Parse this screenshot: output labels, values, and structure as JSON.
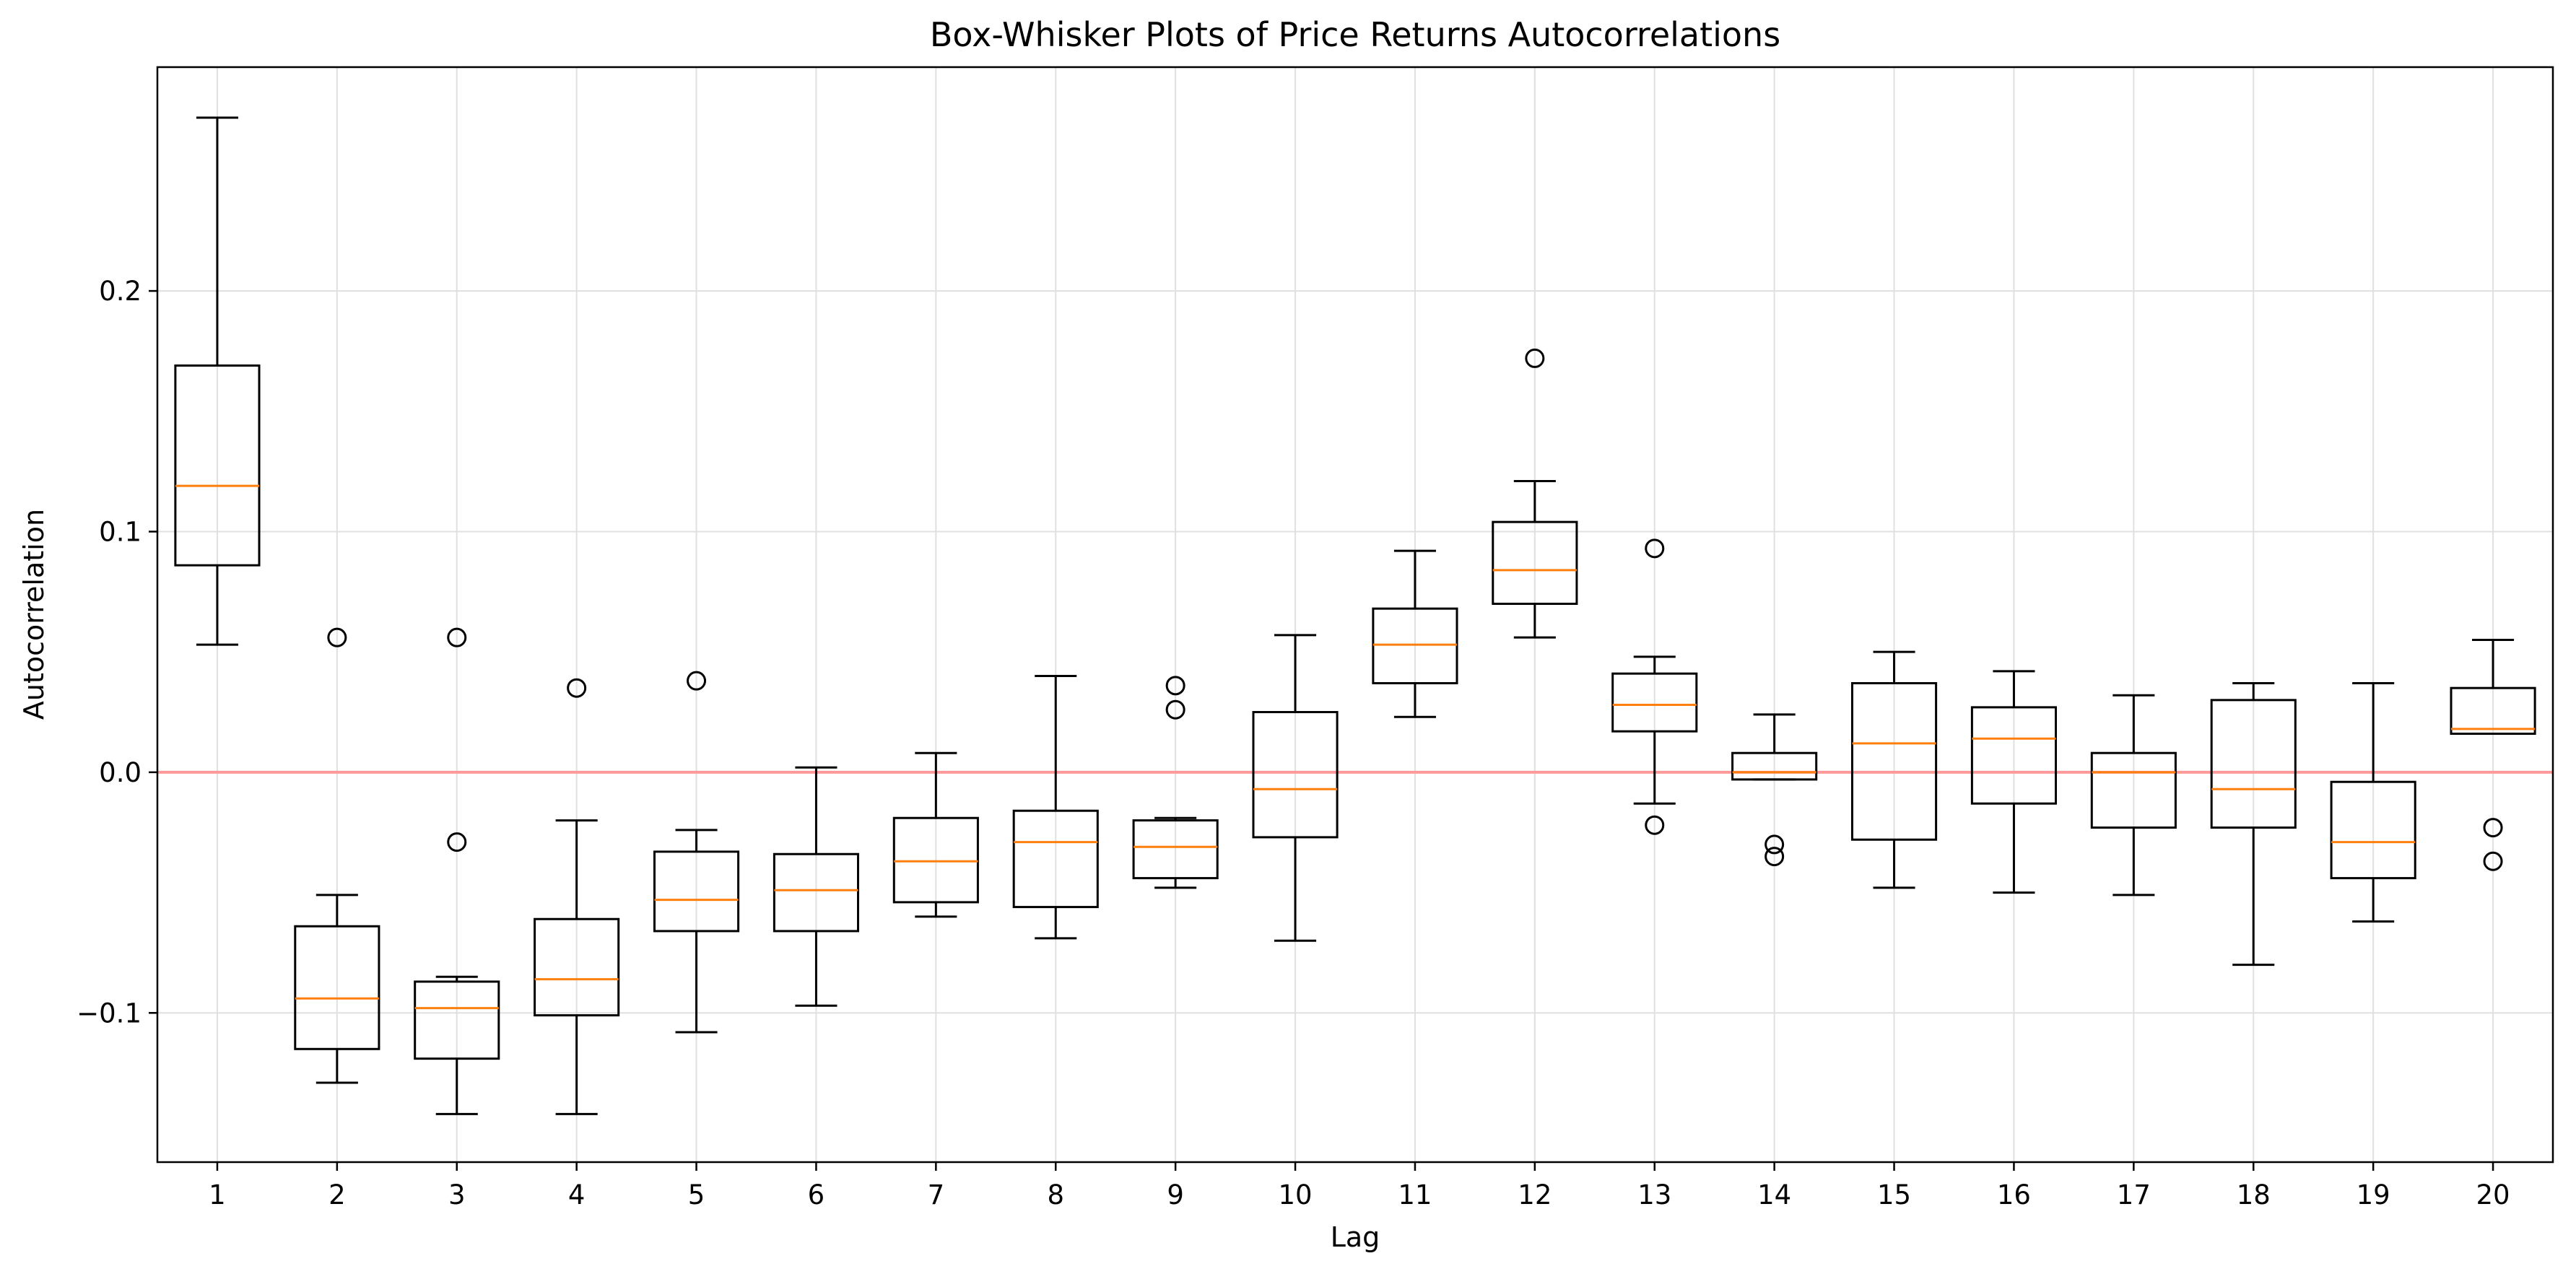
{
  "chart_data": {
    "type": "box",
    "title": "Box-Whisker Plots of Price Returns Autocorrelations",
    "xlabel": "Lag",
    "ylabel": "Autocorrelation",
    "ylim": [
      -0.162,
      0.293
    ],
    "grid": true,
    "reference_line": {
      "y": 0.0,
      "color": "#ff9999"
    },
    "y_ticks": [
      -0.1,
      0.0,
      0.1,
      0.2
    ],
    "y_tick_labels": [
      "−0.1",
      "0.0",
      "0.1",
      "0.2"
    ],
    "categories": [
      "1",
      "2",
      "3",
      "4",
      "5",
      "6",
      "7",
      "8",
      "9",
      "10",
      "11",
      "12",
      "13",
      "14",
      "15",
      "16",
      "17",
      "18",
      "19",
      "20"
    ],
    "boxes": [
      {
        "lag": "1",
        "whisker_low": 0.053,
        "q1": 0.086,
        "median": 0.119,
        "q3": 0.169,
        "whisker_high": 0.272,
        "outliers": []
      },
      {
        "lag": "2",
        "whisker_low": -0.129,
        "q1": -0.115,
        "median": -0.094,
        "q3": -0.064,
        "whisker_high": -0.051,
        "outliers": [
          0.056
        ]
      },
      {
        "lag": "3",
        "whisker_low": -0.142,
        "q1": -0.119,
        "median": -0.098,
        "q3": -0.087,
        "whisker_high": -0.085,
        "outliers": [
          0.056,
          -0.029
        ]
      },
      {
        "lag": "4",
        "whisker_low": -0.142,
        "q1": -0.101,
        "median": -0.086,
        "q3": -0.061,
        "whisker_high": -0.02,
        "outliers": [
          0.035
        ]
      },
      {
        "lag": "5",
        "whisker_low": -0.108,
        "q1": -0.066,
        "median": -0.053,
        "q3": -0.033,
        "whisker_high": -0.024,
        "outliers": [
          0.038
        ]
      },
      {
        "lag": "6",
        "whisker_low": -0.097,
        "q1": -0.066,
        "median": -0.049,
        "q3": -0.034,
        "whisker_high": 0.002,
        "outliers": []
      },
      {
        "lag": "7",
        "whisker_low": -0.06,
        "q1": -0.054,
        "median": -0.037,
        "q3": -0.019,
        "whisker_high": 0.008,
        "outliers": []
      },
      {
        "lag": "8",
        "whisker_low": -0.069,
        "q1": -0.056,
        "median": -0.029,
        "q3": -0.016,
        "whisker_high": 0.04,
        "outliers": []
      },
      {
        "lag": "9",
        "whisker_low": -0.048,
        "q1": -0.044,
        "median": -0.031,
        "q3": -0.02,
        "whisker_high": -0.019,
        "outliers": [
          0.036,
          0.026
        ]
      },
      {
        "lag": "10",
        "whisker_low": -0.07,
        "q1": -0.027,
        "median": -0.007,
        "q3": 0.025,
        "whisker_high": 0.057,
        "outliers": []
      },
      {
        "lag": "11",
        "whisker_low": 0.023,
        "q1": 0.037,
        "median": 0.053,
        "q3": 0.068,
        "whisker_high": 0.092,
        "outliers": []
      },
      {
        "lag": "12",
        "whisker_low": 0.056,
        "q1": 0.07,
        "median": 0.084,
        "q3": 0.104,
        "whisker_high": 0.121,
        "outliers": [
          0.172
        ]
      },
      {
        "lag": "13",
        "whisker_low": -0.013,
        "q1": 0.017,
        "median": 0.028,
        "q3": 0.041,
        "whisker_high": 0.048,
        "outliers": [
          0.093,
          -0.022
        ]
      },
      {
        "lag": "14",
        "whisker_low": -0.003,
        "q1": -0.003,
        "median": 0.0,
        "q3": 0.008,
        "whisker_high": 0.024,
        "outliers": [
          -0.03,
          -0.035
        ]
      },
      {
        "lag": "15",
        "whisker_low": -0.048,
        "q1": -0.028,
        "median": 0.012,
        "q3": 0.037,
        "whisker_high": 0.05,
        "outliers": []
      },
      {
        "lag": "16",
        "whisker_low": -0.05,
        "q1": -0.013,
        "median": 0.014,
        "q3": 0.027,
        "whisker_high": 0.042,
        "outliers": []
      },
      {
        "lag": "17",
        "whisker_low": -0.051,
        "q1": -0.023,
        "median": 0.0,
        "q3": 0.008,
        "whisker_high": 0.032,
        "outliers": []
      },
      {
        "lag": "18",
        "whisker_low": -0.08,
        "q1": -0.023,
        "median": -0.007,
        "q3": 0.03,
        "whisker_high": 0.037,
        "outliers": []
      },
      {
        "lag": "19",
        "whisker_low": -0.062,
        "q1": -0.044,
        "median": -0.029,
        "q3": -0.004,
        "whisker_high": 0.037,
        "outliers": []
      },
      {
        "lag": "20",
        "whisker_low": 0.016,
        "q1": 0.016,
        "median": 0.018,
        "q3": 0.035,
        "whisker_high": 0.055,
        "outliers": [
          -0.023,
          -0.037
        ]
      }
    ],
    "colors": {
      "box": "#000000",
      "median": "#ff7f0e",
      "grid": "#e0e0e0",
      "reference": "#ff9999"
    }
  }
}
